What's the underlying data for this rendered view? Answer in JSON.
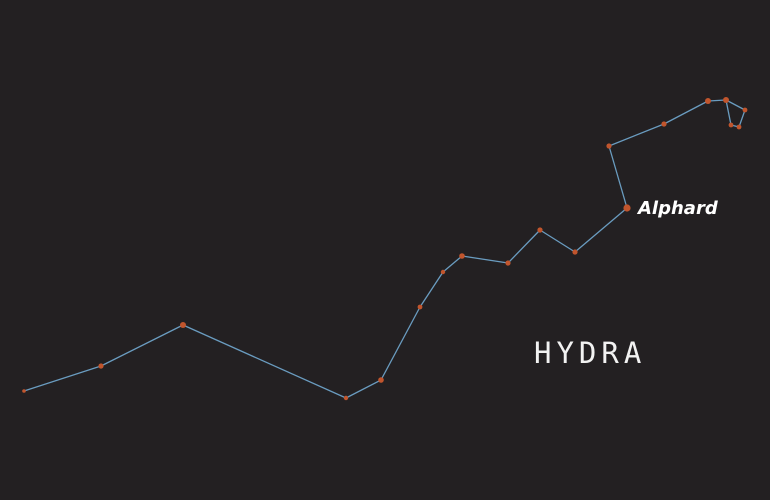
{
  "constellation": {
    "name": "HYDRA",
    "star_label": "Alphard"
  },
  "colors": {
    "background": "#232022",
    "line": "#6a9cc0",
    "star": "#c1552d",
    "text": "#ffffff"
  }
}
